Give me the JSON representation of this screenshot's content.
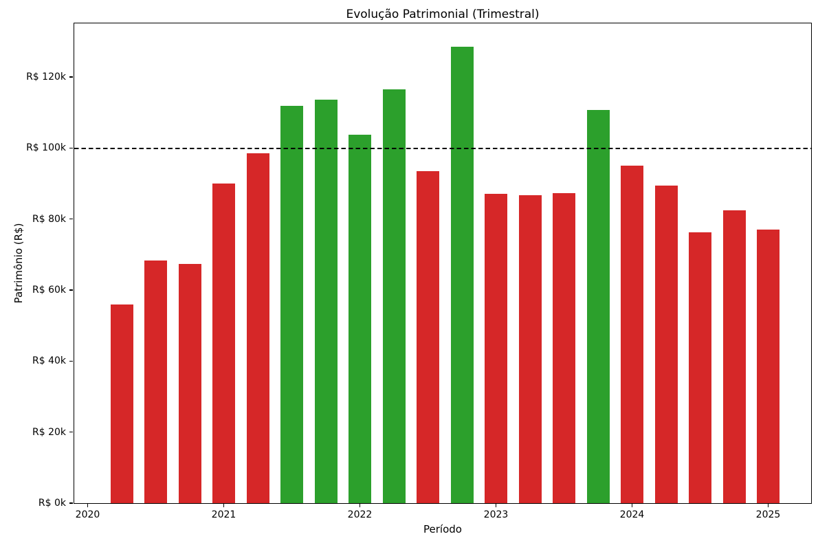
{
  "chart_data": {
    "type": "bar",
    "title": "Evolução Patrimonial (Trimestral)",
    "xlabel": "Período",
    "ylabel": "Patrimônio (R$)",
    "categories": [
      "2020-Q2",
      "2020-Q3",
      "2020-Q4",
      "2021-Q1",
      "2021-Q2",
      "2021-Q3",
      "2021-Q4",
      "2022-Q1",
      "2022-Q2",
      "2022-Q3",
      "2022-Q4",
      "2023-Q1",
      "2023-Q2",
      "2023-Q3",
      "2023-Q4",
      "2024-Q1",
      "2024-Q2",
      "2024-Q3",
      "2024-Q4",
      "2025-Q1"
    ],
    "values_brl": [
      56000,
      68400,
      67300,
      90100,
      98500,
      111900,
      113600,
      103700,
      116500,
      93400,
      128500,
      87100,
      86800,
      87300,
      110800,
      95000,
      89500,
      76300,
      82400,
      77000
    ],
    "threshold_value": 100000,
    "threshold_style": "dashed-black-line",
    "color_above_threshold": "#2ca02c",
    "color_below_threshold": "#d62728",
    "bar_color_rule": "green if value >= 100000 else red",
    "y_ticks": [
      {
        "value": 0,
        "label": "R$ 0k"
      },
      {
        "value": 20000,
        "label": "R$ 20k"
      },
      {
        "value": 40000,
        "label": "R$ 40k"
      },
      {
        "value": 60000,
        "label": "R$ 60k"
      },
      {
        "value": 80000,
        "label": "R$ 80k"
      },
      {
        "value": 100000,
        "label": "R$ 100k"
      },
      {
        "value": 120000,
        "label": "R$ 120k"
      }
    ],
    "x_ticks": [
      "2020",
      "2021",
      "2022",
      "2023",
      "2024",
      "2025"
    ],
    "ylim": [
      0,
      135100
    ],
    "grid": false,
    "legend": "none",
    "bars_per_year": 4
  }
}
